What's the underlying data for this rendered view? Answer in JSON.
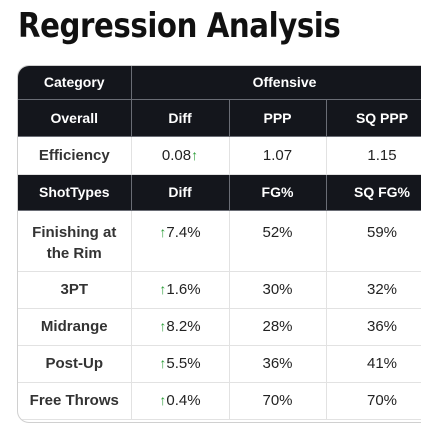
{
  "title": "Regression Analysis",
  "colors": {
    "header_bg": "#14161c",
    "header_text": "#ffffff",
    "up_arrow": "#2e9e3a"
  },
  "icons": {
    "up_arrow": "↑"
  },
  "header_row1": {
    "category": "Category",
    "offensive": "Offensive"
  },
  "header_row2": {
    "label": "Overall",
    "diff": "Diff",
    "ppp": "PPP",
    "sq_ppp": "SQ PPP"
  },
  "efficiency": {
    "label": "Efficiency",
    "diff": "0.08",
    "ppp": "1.07",
    "sq_ppp": "1.15"
  },
  "header_row3": {
    "label": "ShotTypes",
    "diff": "Diff",
    "fg": "FG%",
    "sq_fg": "SQ FG%"
  },
  "shot_types": [
    {
      "label": "Finishing at the Rim",
      "diff": "7.4%",
      "fg": "52%",
      "sq_fg": "59%"
    },
    {
      "label": "3PT",
      "diff": "1.6%",
      "fg": "30%",
      "sq_fg": "32%"
    },
    {
      "label": "Midrange",
      "diff": "8.2%",
      "fg": "28%",
      "sq_fg": "36%"
    },
    {
      "label": "Post-Up",
      "diff": "5.5%",
      "fg": "36%",
      "sq_fg": "41%"
    },
    {
      "label": "Free Throws",
      "diff": "0.4%",
      "fg": "70%",
      "sq_fg": "70%"
    }
  ]
}
